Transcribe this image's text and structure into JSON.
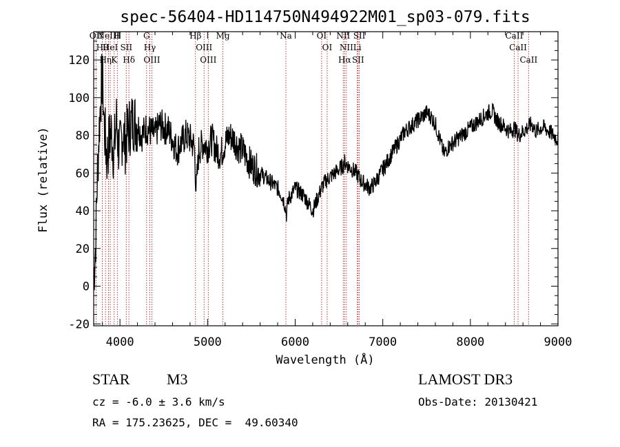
{
  "chart_data": {
    "type": "line",
    "title": "spec-56404-HD114750N494922M01_sp03-079.fits",
    "xlabel": "Wavelength (Å)",
    "ylabel": "Flux (relative)",
    "xlim": [
      3700,
      9000
    ],
    "ylim": [
      -21,
      135
    ],
    "x_ticks": [
      4000,
      5000,
      6000,
      7000,
      8000,
      9000
    ],
    "y_ticks": [
      -20,
      0,
      20,
      40,
      60,
      80,
      100,
      120
    ],
    "line_color": "#000000",
    "marker_color": "#b22222",
    "grid": false,
    "series": [
      {
        "x": [
          3700,
          3720,
          3740,
          3760,
          3780,
          3800,
          3820,
          3850,
          3880,
          3900,
          3930,
          3960,
          3980,
          4000,
          4030,
          4060,
          4100,
          4150,
          4200,
          4250,
          4300,
          4350,
          4400,
          4450,
          4500,
          4550,
          4600,
          4650,
          4700,
          4750,
          4800,
          4850,
          4870,
          4900,
          4950,
          5000,
          5050,
          5100,
          5150,
          5200,
          5250,
          5300,
          5350,
          5400,
          5450,
          5500,
          5550,
          5600,
          5650,
          5700,
          5750,
          5800,
          5850,
          5880,
          5900,
          5920,
          5950,
          6000,
          6050,
          6100,
          6150,
          6180,
          6200,
          6250,
          6300,
          6350,
          6400,
          6450,
          6500,
          6550,
          6563,
          6600,
          6650,
          6700,
          6750,
          6800,
          6850,
          6900,
          6950,
          7000,
          7050,
          7100,
          7150,
          7200,
          7250,
          7300,
          7350,
          7400,
          7450,
          7500,
          7550,
          7600,
          7650,
          7700,
          7750,
          7800,
          7850,
          7900,
          7950,
          8000,
          8050,
          8100,
          8150,
          8200,
          8250,
          8300,
          8350,
          8400,
          8450,
          8500,
          8550,
          8600,
          8650,
          8700,
          8750,
          8800,
          8850,
          8900,
          8950,
          9000
        ],
        "y": [
          5,
          20,
          55,
          80,
          100,
          112,
          85,
          68,
          78,
          82,
          70,
          88,
          75,
          72,
          82,
          76,
          84,
          88,
          86,
          80,
          84,
          82,
          80,
          86,
          84,
          83,
          78,
          72,
          76,
          80,
          78,
          74,
          50,
          72,
          76,
          74,
          78,
          72,
          70,
          76,
          80,
          78,
          74,
          72,
          68,
          64,
          62,
          60,
          58,
          56,
          54,
          52,
          48,
          44,
          38,
          46,
          48,
          52,
          50,
          48,
          44,
          42,
          40,
          46,
          52,
          56,
          58,
          60,
          62,
          64,
          66,
          64,
          62,
          60,
          56,
          54,
          52,
          54,
          58,
          62,
          66,
          70,
          74,
          78,
          82,
          84,
          86,
          88,
          90,
          92,
          90,
          86,
          78,
          70,
          74,
          76,
          78,
          80,
          82,
          84,
          86,
          88,
          90,
          92,
          93,
          88,
          86,
          84,
          82,
          84,
          80,
          82,
          84,
          86,
          82,
          84,
          84,
          82,
          80,
          78
        ]
      }
    ],
    "line_markers": [
      {
        "wavelength": 3727,
        "label": "OII"
      },
      {
        "wavelength": 3798,
        "label": "Hθ"
      },
      {
        "wavelength": 3835,
        "label": "Hη"
      },
      {
        "wavelength": 3869,
        "label": "NeIII"
      },
      {
        "wavelength": 3889,
        "label": "HeI"
      },
      {
        "wavelength": 3934,
        "label": "K"
      },
      {
        "wavelength": 3970,
        "label": "H"
      },
      {
        "wavelength": 4072,
        "label": "SII"
      },
      {
        "wavelength": 4102,
        "label": "Hδ"
      },
      {
        "wavelength": 4304,
        "label": "G"
      },
      {
        "wavelength": 4341,
        "label": "Hγ"
      },
      {
        "wavelength": 4364,
        "label": "OIII"
      },
      {
        "wavelength": 4862,
        "label": "Hβ"
      },
      {
        "wavelength": 4960,
        "label": "OIII"
      },
      {
        "wavelength": 5008,
        "label": "OIII"
      },
      {
        "wavelength": 5175,
        "label": "Mg"
      },
      {
        "wavelength": 5894,
        "label": "Na"
      },
      {
        "wavelength": 6302,
        "label": "OI"
      },
      {
        "wavelength": 6365,
        "label": "OI"
      },
      {
        "wavelength": 6549,
        "label": "NII"
      },
      {
        "wavelength": 6565,
        "label": "Hα"
      },
      {
        "wavelength": 6585,
        "label": "NII"
      },
      {
        "wavelength": 6709,
        "label": "Li"
      },
      {
        "wavelength": 6718,
        "label": "SII"
      },
      {
        "wavelength": 6732,
        "label": "SII"
      },
      {
        "wavelength": 8500,
        "label": "CaII"
      },
      {
        "wavelength": 8544,
        "label": "CaII"
      },
      {
        "wavelength": 8665,
        "label": "CaII"
      }
    ]
  },
  "info": {
    "class_label": "STAR",
    "subclass_label": "M3",
    "survey": "LAMOST DR3",
    "redshift": "cz = -6.0 ± 3.6 km/s",
    "obs_date": "Obs-Date: 20130421",
    "coordinates": "RA = 175.23625, DEC =  49.60340"
  }
}
